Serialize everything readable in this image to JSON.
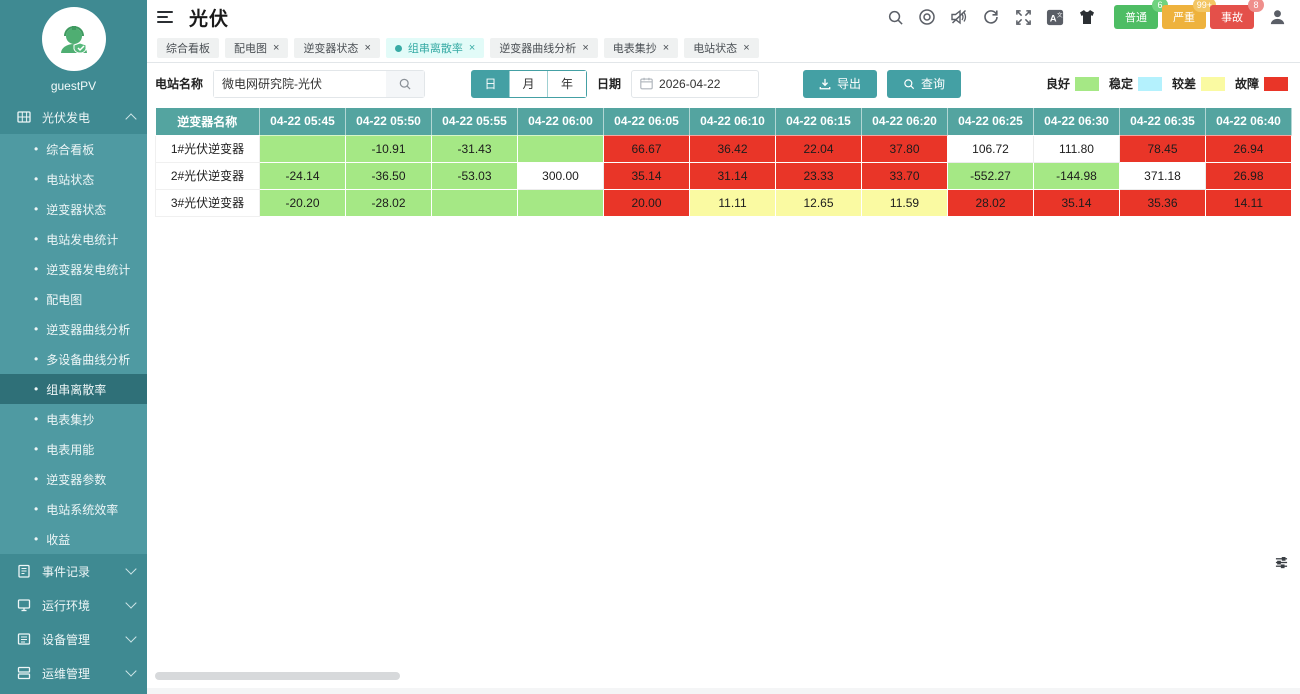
{
  "colors": {
    "accent": "#44a0a4",
    "sidebar": "#3f8a92",
    "submenu": "#4f9aa2",
    "active_item": "#2f7078",
    "table_header": "#54a4a0",
    "good": "#a5e885",
    "stable": "#b4f1fd",
    "poor": "#fafaa2",
    "fault": "#e93528"
  },
  "sidebar": {
    "username": "guestPV",
    "menu": [
      {
        "label": "光伏发电",
        "icon": "solar-panel-icon",
        "expanded": true,
        "active_child": "组串离散率",
        "children": [
          "综合看板",
          "电站状态",
          "逆变器状态",
          "电站发电统计",
          "逆变器发电统计",
          "配电图",
          "逆变器曲线分析",
          "多设备曲线分析",
          "组串离散率",
          "电表集抄",
          "电表用能",
          "逆变器参数",
          "电站系统效率",
          "收益"
        ]
      },
      {
        "label": "事件记录",
        "icon": "event-log-icon",
        "expanded": false,
        "children": []
      },
      {
        "label": "运行环境",
        "icon": "environment-icon",
        "expanded": false,
        "children": []
      },
      {
        "label": "设备管理",
        "icon": "device-icon",
        "expanded": false,
        "children": []
      },
      {
        "label": "运维管理",
        "icon": "ops-icon",
        "expanded": false,
        "children": []
      }
    ]
  },
  "header": {
    "title": "光伏",
    "alerts": [
      {
        "label": "普通",
        "count": "6",
        "color": "#4ebd64",
        "badge_color": "#6fd37f"
      },
      {
        "label": "严重",
        "count": "99+",
        "color": "#eeb23d",
        "badge_color": "#f3c664"
      },
      {
        "label": "事故",
        "count": "8",
        "color": "#e4504a",
        "badge_color": "#ef8f8c"
      }
    ]
  },
  "tabs": [
    {
      "label": "综合看板",
      "closable": false,
      "active": false
    },
    {
      "label": "配电图",
      "closable": true,
      "active": false
    },
    {
      "label": "逆变器状态",
      "closable": true,
      "active": false
    },
    {
      "label": "组串离散率",
      "closable": true,
      "active": true
    },
    {
      "label": "逆变器曲线分析",
      "closable": true,
      "active": false
    },
    {
      "label": "电表集抄",
      "closable": true,
      "active": false
    },
    {
      "label": "电站状态",
      "closable": true,
      "active": false
    }
  ],
  "filters": {
    "station_label": "电站名称",
    "station_value": "微电网研究院-光伏",
    "period_options": [
      "日",
      "月",
      "年"
    ],
    "period_active": "日",
    "date_label": "日期",
    "date_value": "2026-04-22",
    "export_label": "导出",
    "query_label": "查询"
  },
  "legend": [
    {
      "label": "良好",
      "status": "good"
    },
    {
      "label": "稳定",
      "status": "stable"
    },
    {
      "label": "较差",
      "status": "poor"
    },
    {
      "label": "故障",
      "status": "fault"
    }
  ],
  "table": {
    "name_header": "逆变器名称",
    "time_headers": [
      "04-22 05:45",
      "04-22 05:50",
      "04-22 05:55",
      "04-22 06:00",
      "04-22 06:05",
      "04-22 06:10",
      "04-22 06:15",
      "04-22 06:20",
      "04-22 06:25",
      "04-22 06:30",
      "04-22 06:35",
      "04-22 06:40"
    ],
    "rows": [
      {
        "name": "1#光伏逆变器",
        "cells": [
          {
            "v": "",
            "s": "good"
          },
          {
            "v": "-10.91",
            "s": "good"
          },
          {
            "v": "-31.43",
            "s": "good"
          },
          {
            "v": "",
            "s": "good"
          },
          {
            "v": "66.67",
            "s": "fault"
          },
          {
            "v": "36.42",
            "s": "fault"
          },
          {
            "v": "22.04",
            "s": "fault"
          },
          {
            "v": "37.80",
            "s": "fault"
          },
          {
            "v": "106.72",
            "s": "none"
          },
          {
            "v": "111.80",
            "s": "none"
          },
          {
            "v": "78.45",
            "s": "fault"
          },
          {
            "v": "26.94",
            "s": "fault"
          }
        ]
      },
      {
        "name": "2#光伏逆变器",
        "cells": [
          {
            "v": "-24.14",
            "s": "good"
          },
          {
            "v": "-36.50",
            "s": "good"
          },
          {
            "v": "-53.03",
            "s": "good"
          },
          {
            "v": "300.00",
            "s": "none"
          },
          {
            "v": "35.14",
            "s": "fault"
          },
          {
            "v": "31.14",
            "s": "fault"
          },
          {
            "v": "23.33",
            "s": "fault"
          },
          {
            "v": "33.70",
            "s": "fault"
          },
          {
            "v": "-552.27",
            "s": "good"
          },
          {
            "v": "-144.98",
            "s": "good"
          },
          {
            "v": "371.18",
            "s": "none"
          },
          {
            "v": "26.98",
            "s": "fault"
          }
        ]
      },
      {
        "name": "3#光伏逆变器",
        "cells": [
          {
            "v": "-20.20",
            "s": "good"
          },
          {
            "v": "-28.02",
            "s": "good"
          },
          {
            "v": "",
            "s": "good"
          },
          {
            "v": "",
            "s": "good"
          },
          {
            "v": "20.00",
            "s": "fault"
          },
          {
            "v": "11.11",
            "s": "poor"
          },
          {
            "v": "12.65",
            "s": "poor"
          },
          {
            "v": "11.59",
            "s": "poor"
          },
          {
            "v": "28.02",
            "s": "fault"
          },
          {
            "v": "35.14",
            "s": "fault"
          },
          {
            "v": "35.36",
            "s": "fault"
          },
          {
            "v": "14.11",
            "s": "fault"
          }
        ]
      }
    ]
  }
}
